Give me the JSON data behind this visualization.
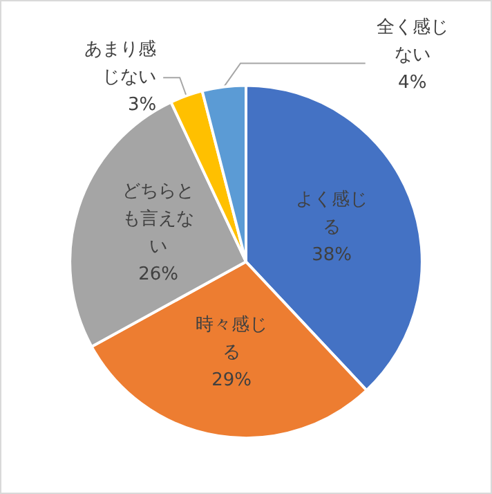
{
  "chart_data": {
    "type": "pie",
    "categories": [
      "よく感じる",
      "時々感じる",
      "どちらとも言えない",
      "あまり感じない",
      "全く感じない"
    ],
    "values": [
      38,
      29,
      26,
      3,
      4
    ],
    "value_labels": [
      "38%",
      "29%",
      "26%",
      "3%",
      "4%"
    ],
    "colors": [
      "#4472c4",
      "#ed7d31",
      "#a5a5a5",
      "#ffc000",
      "#5b9bd5"
    ],
    "legend": false
  }
}
